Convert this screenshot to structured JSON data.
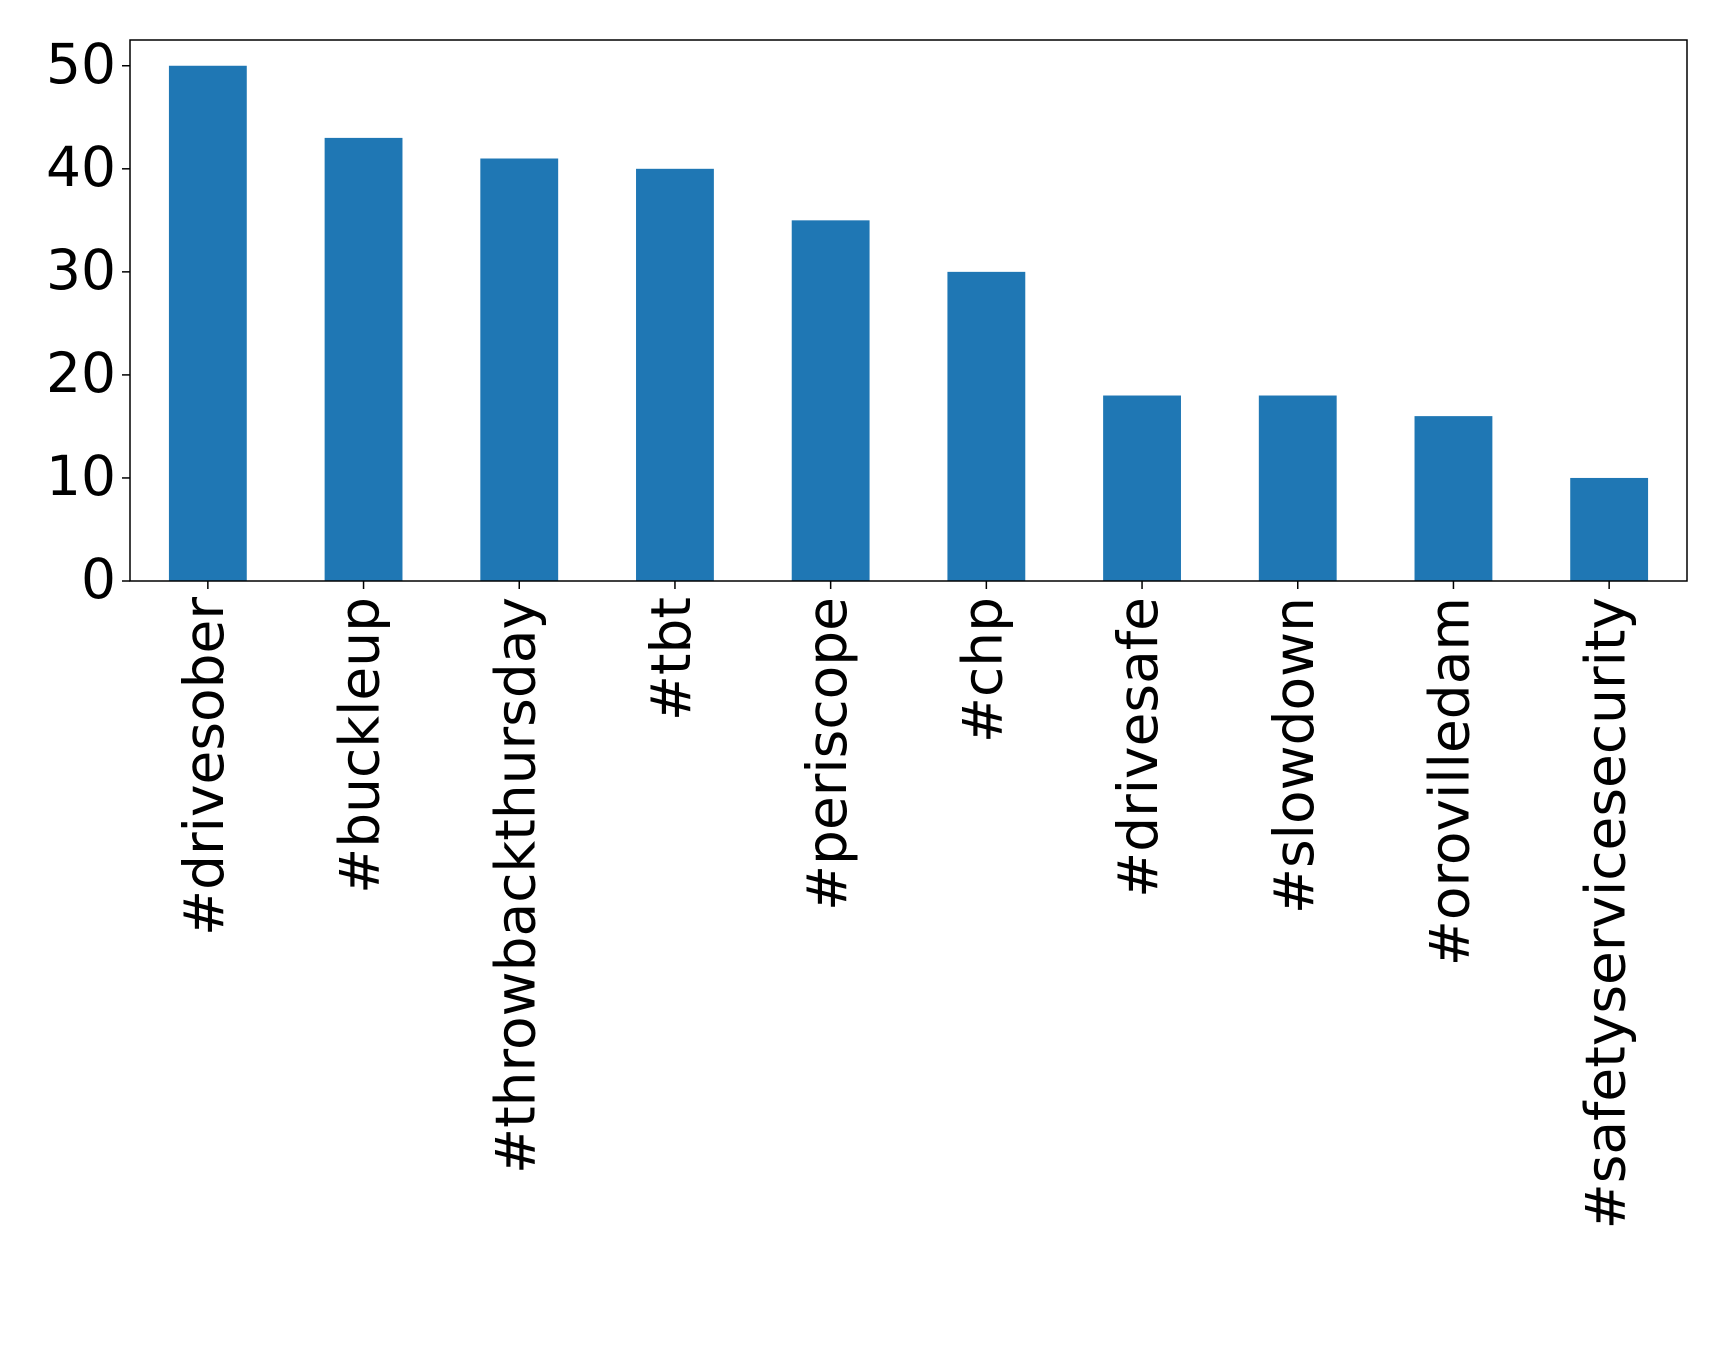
{
  "chart_data": {
    "type": "bar",
    "categories": [
      "#drivesober",
      "#buckleup",
      "#throwbackthursday",
      "#tbt",
      "#periscope",
      "#chp",
      "#drivesafe",
      "#slowdown",
      "#orovilledam",
      "#safetyservicesecurity"
    ],
    "values": [
      50,
      43,
      41,
      40,
      35,
      30,
      18,
      18,
      16,
      10
    ],
    "color": "#1f77b4",
    "ylim": [
      0,
      52.5
    ],
    "yticks": [
      0,
      10,
      20,
      30,
      40,
      50
    ],
    "grid": false
  }
}
